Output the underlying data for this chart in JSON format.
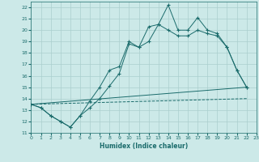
{
  "xlabel": "Humidex (Indice chaleur)",
  "xlim": [
    0,
    23
  ],
  "ylim": [
    11,
    22.5
  ],
  "yticks": [
    11,
    12,
    13,
    14,
    15,
    16,
    17,
    18,
    19,
    20,
    21,
    22
  ],
  "xticks": [
    0,
    1,
    2,
    3,
    4,
    5,
    6,
    7,
    8,
    9,
    10,
    11,
    12,
    13,
    14,
    15,
    16,
    17,
    18,
    19,
    20,
    21,
    22,
    23
  ],
  "background_color": "#cce9e8",
  "grid_color": "#aacfce",
  "line_color": "#1a6b6b",
  "series": [
    {
      "x": [
        0,
        1,
        2,
        3,
        4,
        5,
        6,
        7,
        8,
        9,
        10,
        11,
        12,
        13,
        14,
        15,
        16,
        17,
        18,
        19,
        20,
        21,
        22
      ],
      "y": [
        13.5,
        13.2,
        12.5,
        12.0,
        11.5,
        12.5,
        13.8,
        15.0,
        16.5,
        16.8,
        19.0,
        18.5,
        20.3,
        20.5,
        22.2,
        20.0,
        20.0,
        21.1,
        20.0,
        19.7,
        18.5,
        16.5,
        15.0
      ],
      "marker": "+"
    },
    {
      "x": [
        0,
        1,
        2,
        3,
        4,
        5,
        6,
        7,
        8,
        9,
        10,
        11,
        12,
        13,
        14,
        15,
        16,
        17,
        18,
        19,
        20,
        21,
        22
      ],
      "y": [
        13.5,
        13.2,
        12.5,
        12.0,
        11.5,
        12.5,
        13.2,
        14.0,
        15.1,
        16.2,
        18.8,
        18.5,
        19.0,
        20.5,
        20.0,
        19.5,
        19.5,
        20.0,
        19.7,
        19.5,
        18.5,
        16.5,
        15.0
      ],
      "marker": "+"
    },
    {
      "x": [
        0,
        22
      ],
      "y": [
        13.5,
        15.0
      ],
      "marker": null,
      "linestyle": "-"
    },
    {
      "x": [
        0,
        22
      ],
      "y": [
        13.5,
        14.0
      ],
      "marker": null,
      "linestyle": "--"
    }
  ]
}
